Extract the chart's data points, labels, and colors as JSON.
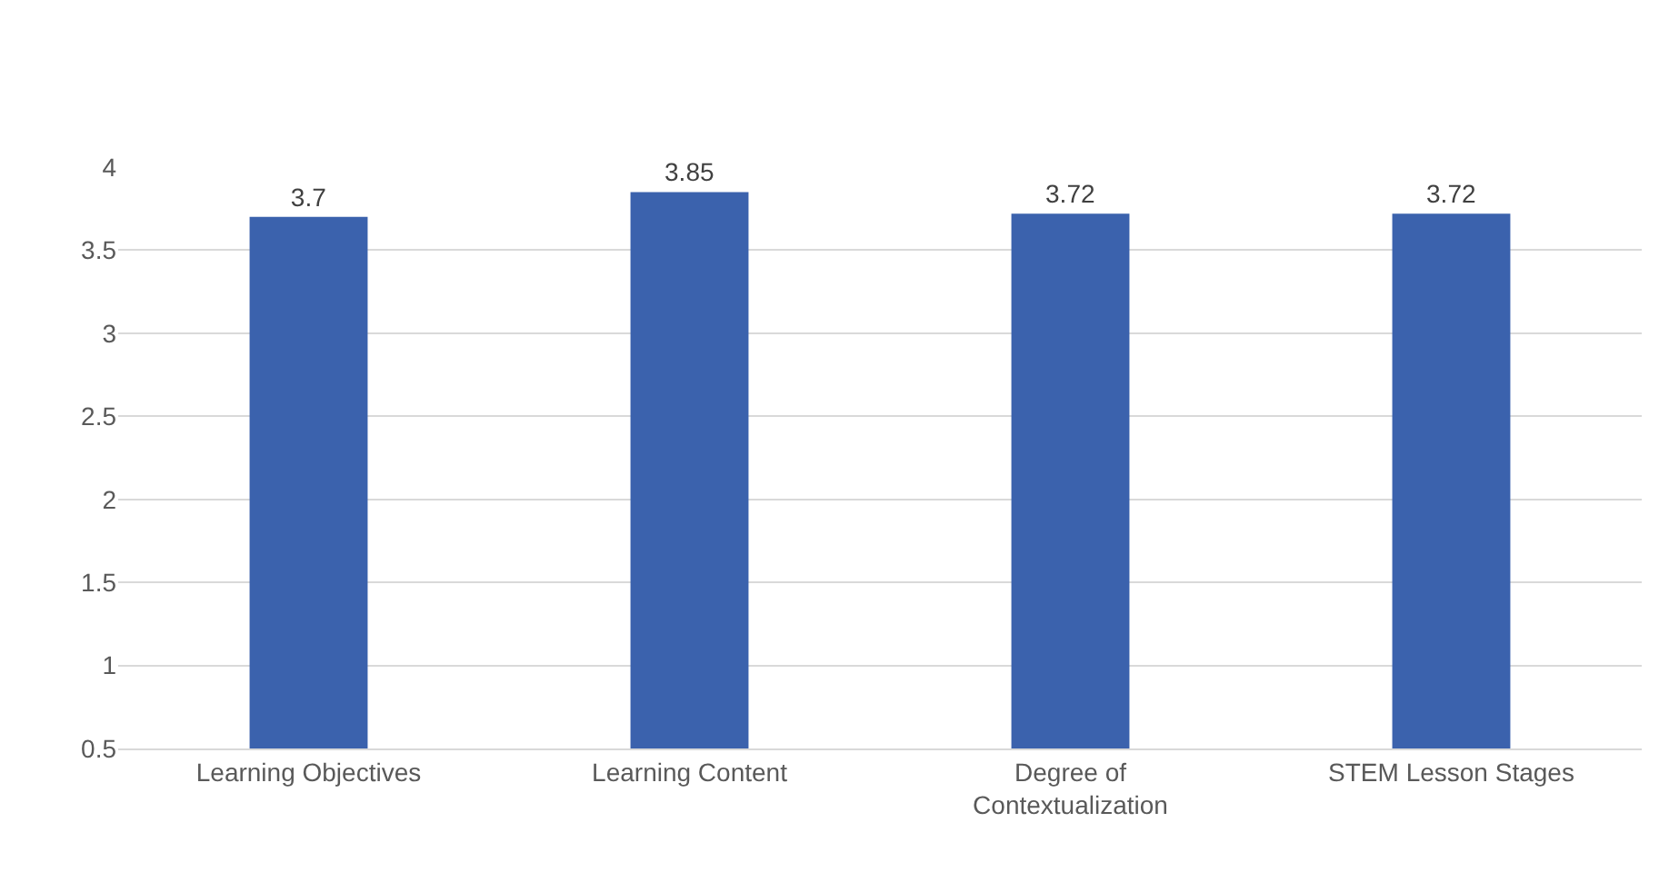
{
  "chart_data": {
    "type": "bar",
    "categories": [
      "Learning Objectives",
      "Learning Content",
      "Degree of Contextualization",
      "STEM Lesson Stages"
    ],
    "values": [
      3.7,
      3.85,
      3.72,
      3.72
    ],
    "color": "#3b62ad",
    "ylim": [
      0.5,
      4
    ],
    "yticks": [
      0.5,
      1,
      1.5,
      2,
      2.5,
      3,
      3.5,
      4
    ],
    "grid": "y",
    "data_labels": true
  }
}
